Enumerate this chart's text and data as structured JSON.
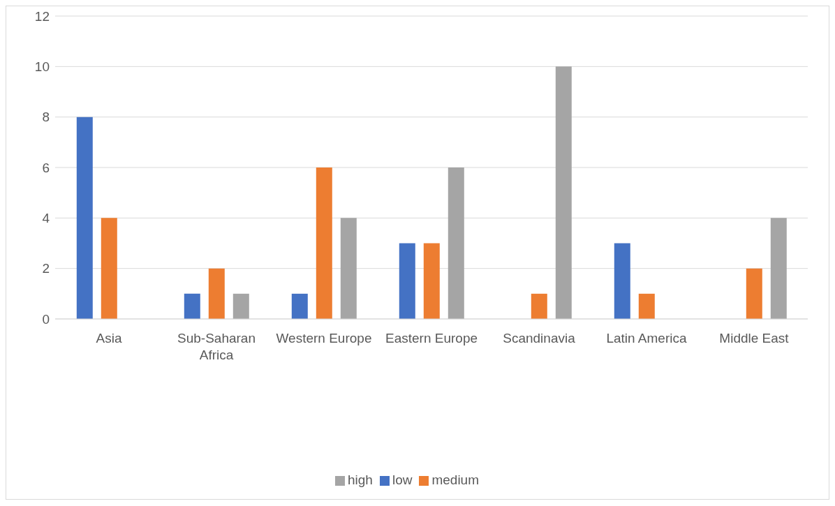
{
  "chart_data": {
    "type": "bar",
    "categories": [
      "Asia",
      "Sub-Saharan Africa",
      "Western Europe",
      "Eastern Europe",
      "Scandinavia",
      "Latin America",
      "Middle East"
    ],
    "series": [
      {
        "name": "low",
        "color": "#4472c4",
        "values": [
          8,
          1,
          1,
          3,
          0,
          3,
          0
        ]
      },
      {
        "name": "medium",
        "color": "#ed7d31",
        "values": [
          4,
          2,
          6,
          3,
          1,
          1,
          2
        ]
      },
      {
        "name": "high",
        "color": "#a5a5a5",
        "values": [
          0,
          1,
          4,
          6,
          10,
          0,
          4
        ]
      }
    ],
    "ylim": [
      0,
      12
    ],
    "yticks": [
      0,
      2,
      4,
      6,
      8,
      10,
      12
    ],
    "grid": "y",
    "legend": "bottom"
  }
}
